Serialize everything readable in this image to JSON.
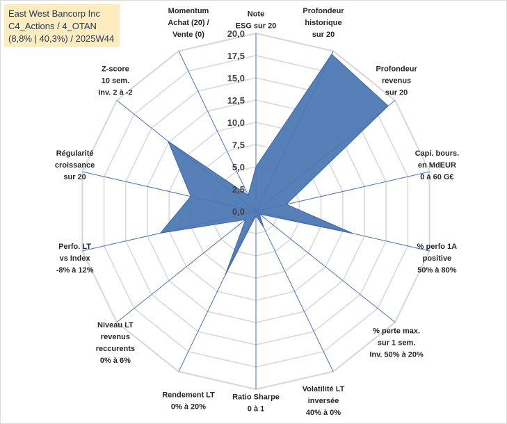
{
  "title_box": {
    "line1": "East West Bancorp Inc",
    "line2": "C4_Actions / 4_OTAN",
    "line3": "(8,8% | 40,3%) / 2025W44"
  },
  "colors": {
    "fill": "#4a76b4",
    "fill_stroke": "#3a65a5",
    "spoke": "#4472c4",
    "grid": "#d9d9d9",
    "title_bg": "#fdecc0",
    "title_text": "#1f3864"
  },
  "chart_data": {
    "type": "radar",
    "rmin": 0,
    "rmax": 20,
    "tick_labels": [
      "0,0",
      "2,5",
      "5,0",
      "7,5",
      "10,0",
      "12,5",
      "15,0",
      "17,5",
      "20,0"
    ],
    "categories": [
      [
        "Note",
        "ESG sur 20"
      ],
      [
        "Profondeur",
        "historique",
        "sur 20"
      ],
      [
        "Profondeur",
        "revenus",
        "sur 20"
      ],
      [
        "Capi. bours.",
        "en MdEUR",
        "0 à 60 G€"
      ],
      [
        "% perfo 1A",
        "positive",
        "50% à 80%"
      ],
      [
        "% perte max.",
        "sur 1 sem.",
        "Inv. 50% à 20%"
      ],
      [
        "Volatilité LT",
        "inversée",
        "40% à 0%"
      ],
      [
        "Ratio Sharpe",
        "0 à 1"
      ],
      [
        "Rendement LT",
        "0% à 20%"
      ],
      [
        "Niveau LT",
        "revenus",
        "reccurents",
        "0% à 6%"
      ],
      [
        "Perfo. LT",
        "vs Index",
        "-8% à 12%"
      ],
      [
        "Régularité",
        "croissance",
        "sur 20"
      ],
      [
        "Z-score",
        "10 sem.",
        "Inv. 2 à -2"
      ],
      [
        "Momentum",
        "Achat (20) /",
        "Vente (0)"
      ]
    ],
    "series": [
      {
        "name": "East West Bancorp Inc",
        "values": [
          5.0,
          19.6,
          19.0,
          3.5,
          11.2,
          0.5,
          2.0,
          0.5,
          8.0,
          1.5,
          11.0,
          7.5,
          12.6,
          2.0
        ]
      }
    ]
  }
}
